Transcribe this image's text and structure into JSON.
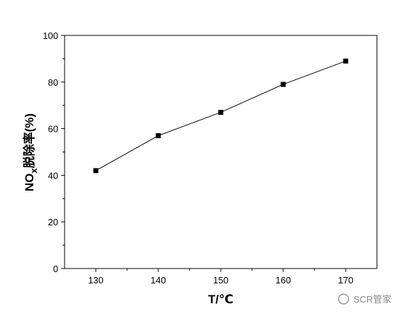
{
  "chart_data": {
    "type": "line",
    "x": [
      130,
      140,
      150,
      160,
      170
    ],
    "values": [
      42,
      57,
      67,
      79,
      89
    ],
    "color": "#000000",
    "marker": "square",
    "xlim": [
      125,
      175
    ],
    "xticks": [
      130,
      140,
      150,
      160,
      170
    ],
    "xminorticks": [
      135,
      145,
      155,
      165
    ],
    "ylim": [
      0,
      100
    ],
    "yticks": [
      0,
      20,
      40,
      60,
      80,
      100
    ],
    "yminorticks": [
      10,
      30,
      50,
      70,
      90
    ],
    "xlabel": "T/℃",
    "ylabel_parts": [
      "NO",
      "x",
      "脱除率(%)"
    ],
    "watermark": "SCR管家"
  }
}
